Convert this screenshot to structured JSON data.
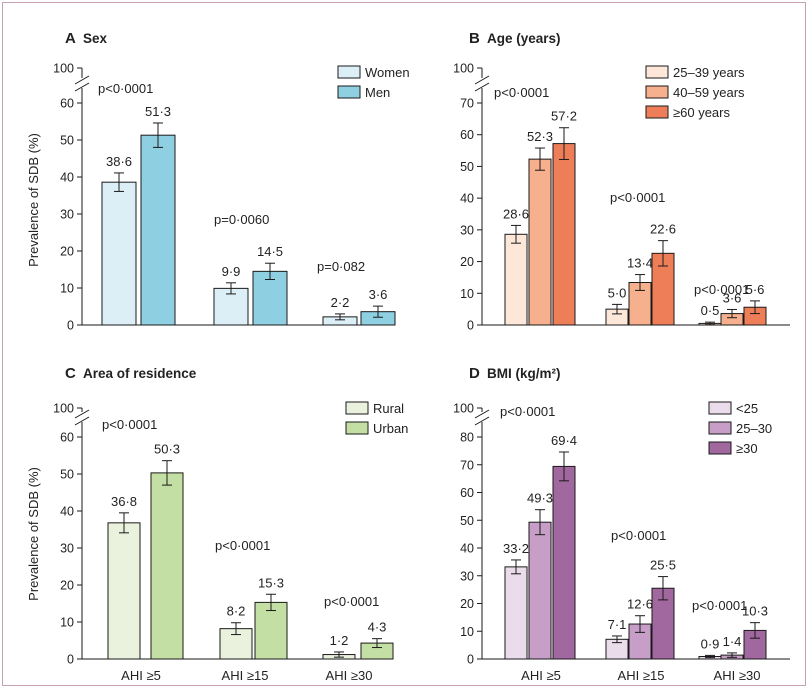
{
  "colors": {
    "sex": [
      "#dceff6",
      "#8ecfe1"
    ],
    "age": [
      "#fde7d9",
      "#f7b08e",
      "#ee7e58"
    ],
    "area": [
      "#eaf2dd",
      "#c4dfa4"
    ],
    "bmi": [
      "#ebdceb",
      "#c79ec8",
      "#a1679f"
    ],
    "bar_stroke": "#1a1a1a",
    "frame": "#c8a0b4"
  },
  "chart_data": [
    {
      "type": "bar",
      "panel_letter": "A",
      "title": "Sex",
      "ylabel": "Prevalence of SDB (%)",
      "categories": [
        "AHI ≥5",
        "AHI ≥15",
        "AHI ≥30"
      ],
      "ylim": [
        0,
        60
      ],
      "yticks": [
        0,
        10,
        20,
        30,
        40,
        50,
        60
      ],
      "axis_break_top": "100",
      "legend_position": "top-right",
      "series": [
        {
          "name": "Women",
          "values": [
            38.6,
            9.9,
            2.2
          ],
          "labels": [
            "38·6",
            "9·9",
            "2·2"
          ],
          "errors": [
            2.5,
            1.5,
            0.8
          ]
        },
        {
          "name": "Men",
          "values": [
            51.3,
            14.5,
            3.6
          ],
          "labels": [
            "51·3",
            "14·5",
            "3·6"
          ],
          "errors": [
            3.3,
            2.2,
            1.5
          ]
        }
      ],
      "p_values": [
        "p<0·0001",
        "p=0·0060",
        "p=0·082"
      ]
    },
    {
      "type": "bar",
      "panel_letter": "B",
      "title": "Age (years)",
      "ylabel": "",
      "categories": [
        "AHI ≥5",
        "AHI ≥15",
        "AHI ≥30"
      ],
      "ylim": [
        0,
        70
      ],
      "yticks": [
        0,
        10,
        20,
        30,
        40,
        50,
        60,
        70
      ],
      "axis_break_top": "100",
      "legend_position": "top-right",
      "series": [
        {
          "name": "25–39 years",
          "values": [
            28.6,
            5.0,
            0.5
          ],
          "labels": [
            "28·6",
            "5·0",
            "0·5"
          ],
          "errors": [
            2.8,
            1.5,
            0.4
          ]
        },
        {
          "name": "40–59 years",
          "values": [
            52.3,
            13.4,
            3.6
          ],
          "labels": [
            "52·3",
            "13·4",
            "3·6"
          ],
          "errors": [
            3.5,
            2.5,
            1.3
          ]
        },
        {
          "name": "≥60 years",
          "values": [
            57.2,
            22.6,
            5.6
          ],
          "labels": [
            "57·2",
            "22·6",
            "5·6"
          ],
          "errors": [
            5.0,
            4.0,
            2.0
          ]
        }
      ],
      "p_values": [
        "p<0·0001",
        "p<0·0001",
        "p<0·0001"
      ]
    },
    {
      "type": "bar",
      "panel_letter": "C",
      "title": "Area of residence",
      "ylabel": "Prevalence of SDB (%)",
      "categories": [
        "AHI ≥5",
        "AHI ≥15",
        "AHI ≥30"
      ],
      "ylim": [
        0,
        60
      ],
      "yticks": [
        0,
        10,
        20,
        30,
        40,
        50,
        60
      ],
      "axis_break_top": "100",
      "legend_position": "top-right",
      "series": [
        {
          "name": "Rural",
          "values": [
            36.8,
            8.2,
            1.2
          ],
          "labels": [
            "36·8",
            "8·2",
            "1·2"
          ],
          "errors": [
            2.7,
            1.6,
            0.7
          ]
        },
        {
          "name": "Urban",
          "values": [
            50.3,
            15.3,
            4.3
          ],
          "labels": [
            "50·3",
            "15·3",
            "4·3"
          ],
          "errors": [
            3.3,
            2.2,
            1.2
          ]
        }
      ],
      "p_values": [
        "p<0·0001",
        "p<0·0001",
        "p<0·0001"
      ]
    },
    {
      "type": "bar",
      "panel_letter": "D",
      "title": "BMI (kg/m²)",
      "ylabel": "",
      "categories": [
        "AHI ≥5",
        "AHI ≥15",
        "AHI ≥30"
      ],
      "ylim": [
        0,
        80
      ],
      "yticks": [
        0,
        10,
        20,
        30,
        40,
        50,
        60,
        70,
        80
      ],
      "axis_break_top": "100",
      "legend_position": "top-right",
      "series": [
        {
          "name": "<25",
          "values": [
            33.2,
            7.1,
            0.9
          ],
          "labels": [
            "33·2",
            "7·1",
            "0·9"
          ],
          "errors": [
            2.5,
            1.2,
            0.4
          ]
        },
        {
          "name": "25–30",
          "values": [
            49.3,
            12.6,
            1.4
          ],
          "labels": [
            "49·3",
            "12·6",
            "1·4"
          ],
          "errors": [
            4.5,
            3.0,
            0.8
          ]
        },
        {
          "name": "≥30",
          "values": [
            69.4,
            25.5,
            10.3
          ],
          "labels": [
            "69·4",
            "25·5",
            "10·3"
          ],
          "errors": [
            5.2,
            4.2,
            2.8
          ]
        }
      ],
      "p_values": [
        "p<0·0001",
        "p<0·0001",
        "p<0·0001"
      ]
    }
  ]
}
